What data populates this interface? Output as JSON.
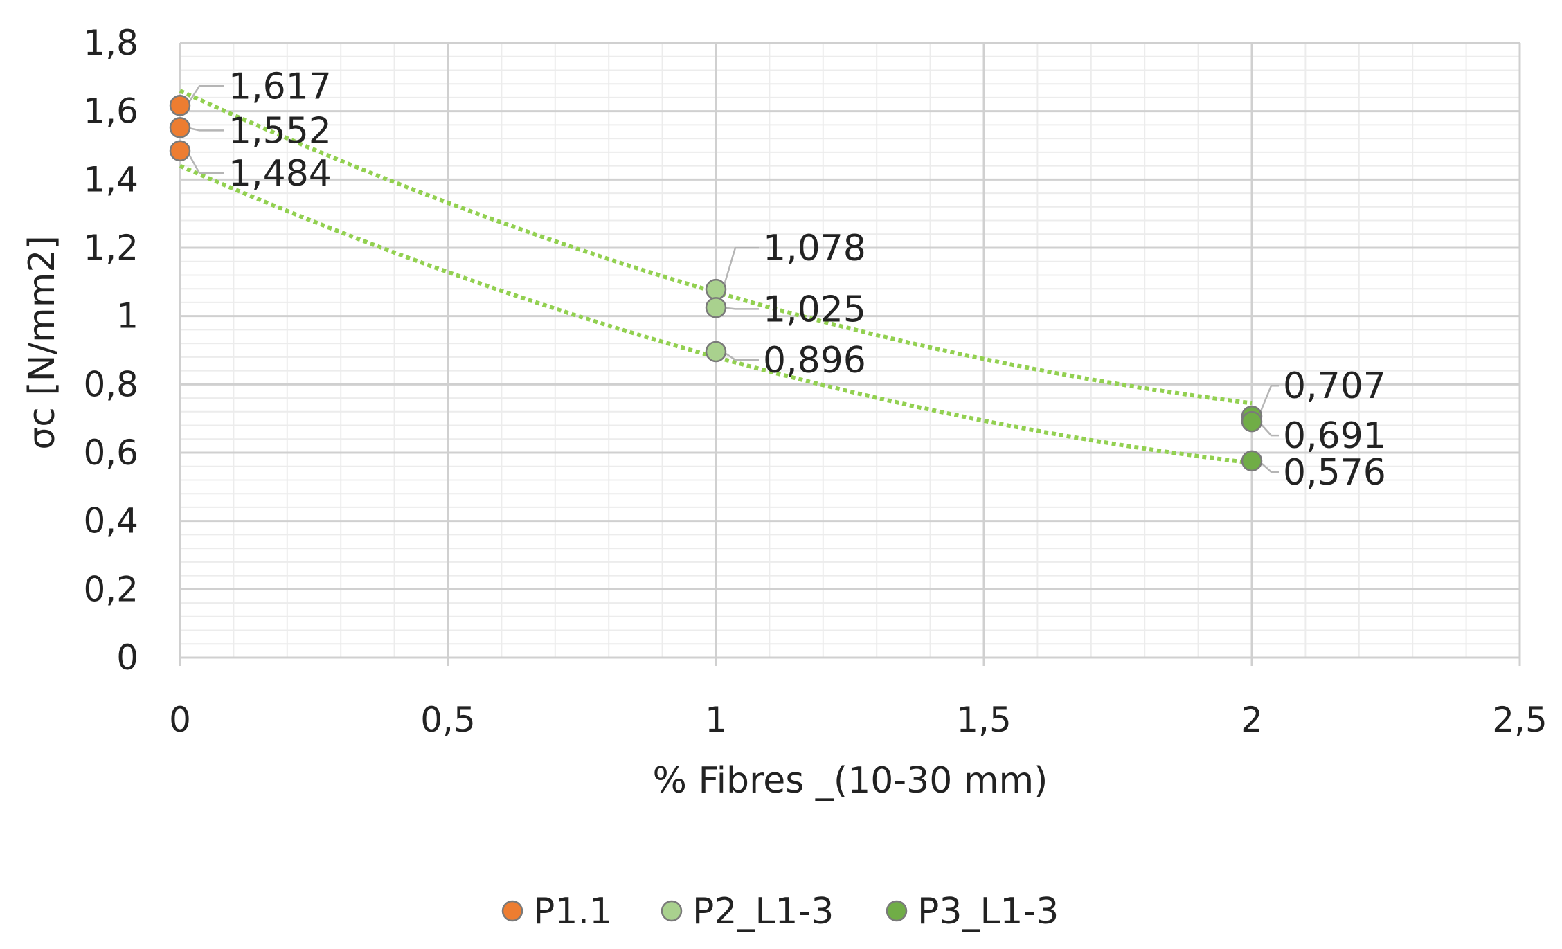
{
  "chart_data": {
    "type": "scatter",
    "title": "",
    "xlabel": "% Fibres _(10-30 mm)",
    "ylabel": "σc [N/mm2]",
    "xlim": [
      0,
      2.5
    ],
    "ylim": [
      0,
      1.8
    ],
    "x_ticks": [
      "0",
      "0,5",
      "1",
      "1,5",
      "2",
      "2,5"
    ],
    "y_ticks": [
      "0",
      "0,2",
      "0,4",
      "0,6",
      "0,8",
      "1",
      "1,2",
      "1,4",
      "1,6",
      "1,8"
    ],
    "grid": true,
    "legend_position": "bottom",
    "series": [
      {
        "name": "P1.1",
        "color": "#ED7D31",
        "points": [
          {
            "x": 0,
            "y": 1.617,
            "label": "1,617"
          },
          {
            "x": 0,
            "y": 1.552,
            "label": "1,552"
          },
          {
            "x": 0,
            "y": 1.484,
            "label": "1,484"
          }
        ]
      },
      {
        "name": "P2_L1-3",
        "color": "#A9D18E",
        "points": [
          {
            "x": 1,
            "y": 1.078,
            "label": "1,078"
          },
          {
            "x": 1,
            "y": 1.025,
            "label": "1,025"
          },
          {
            "x": 1,
            "y": 0.896,
            "label": "0,896"
          }
        ]
      },
      {
        "name": "P3_L1-3",
        "color": "#70AD47",
        "points": [
          {
            "x": 2,
            "y": 0.707,
            "label": "0,707"
          },
          {
            "x": 2,
            "y": 0.691,
            "label": "0,691"
          },
          {
            "x": 2,
            "y": 0.576,
            "label": "0,576"
          }
        ]
      }
    ],
    "trendlines": [
      {
        "type": "polynomial",
        "color": "#92D050",
        "points": [
          [
            0,
            1.66
          ],
          [
            1,
            1.07
          ],
          [
            2,
            0.745
          ]
        ]
      },
      {
        "type": "polynomial",
        "color": "#92D050",
        "points": [
          [
            0,
            1.44
          ],
          [
            1,
            0.88
          ],
          [
            2,
            0.57
          ]
        ]
      }
    ]
  }
}
